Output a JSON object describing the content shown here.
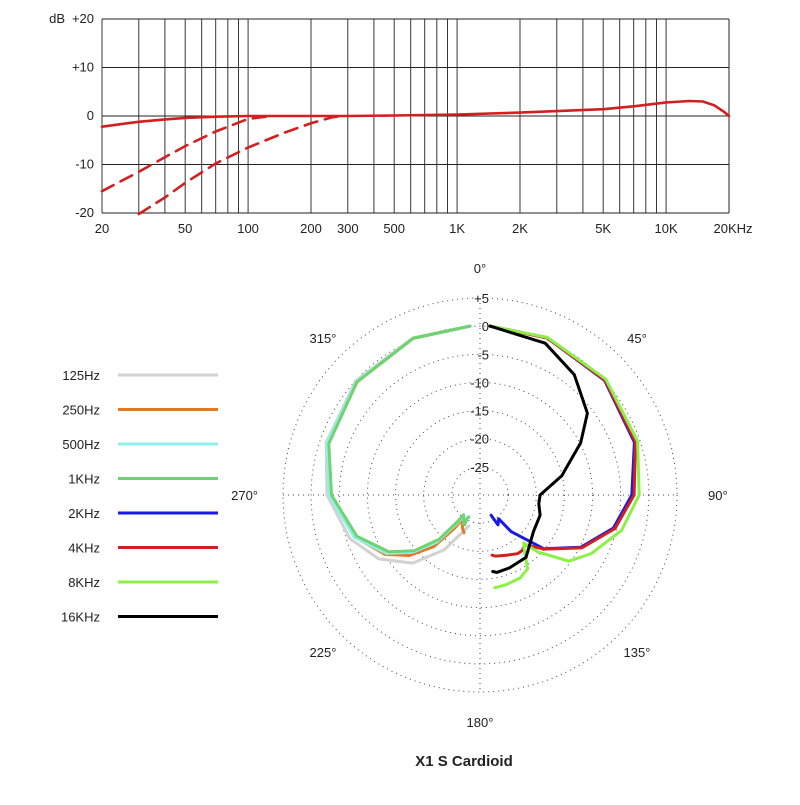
{
  "chart_data": [
    {
      "type": "line",
      "chart_name": "frequency-response",
      "ylabel_unit": "dB",
      "x_scale": "log",
      "xlim": [
        20,
        20000
      ],
      "ylim": [
        -20,
        20
      ],
      "x_ticks": [
        20,
        50,
        100,
        200,
        300,
        500,
        1000,
        2000,
        5000,
        10000,
        20000
      ],
      "x_tick_labels": [
        "20",
        "50",
        "100",
        "200",
        "300",
        "500",
        "1K",
        "2K",
        "5K",
        "10K",
        "20KHz"
      ],
      "y_ticks": [
        20,
        10,
        0,
        -10,
        -20
      ],
      "y_tick_labels": [
        "+20",
        "+10",
        "0",
        "-10",
        "-20"
      ],
      "grid": true,
      "series": [
        {
          "line_style": "solid",
          "color": "#d21f1f",
          "x": [
            20,
            30,
            40,
            50,
            70,
            100,
            150,
            200,
            300,
            500,
            1000,
            2000,
            3000,
            5000,
            7000,
            10000,
            13000,
            15000,
            17000,
            19000,
            20000
          ],
          "y": [
            -2.2,
            -1.2,
            -0.7,
            -0.4,
            -0.15,
            0,
            0,
            0,
            0,
            0.1,
            0.3,
            0.7,
            1.0,
            1.4,
            2.0,
            2.8,
            3.1,
            3.0,
            2.2,
            0.8,
            0
          ]
        },
        {
          "line_style": "dashed",
          "color": "#d21f1f",
          "x": [
            20,
            30,
            40,
            50,
            70,
            100,
            130
          ],
          "y": [
            -15.5,
            -11.5,
            -8.5,
            -6.2,
            -3.2,
            -0.6,
            0
          ]
        },
        {
          "line_style": "dashed",
          "color": "#d21f1f",
          "x": [
            30,
            40,
            50,
            70,
            100,
            150,
            200,
            250,
            280
          ],
          "y": [
            -20.5,
            -16.8,
            -13.8,
            -9.8,
            -6.5,
            -3.4,
            -1.5,
            -0.3,
            0
          ]
        }
      ]
    },
    {
      "type": "polar",
      "chart_name": "polar-pattern",
      "r_ticks": [
        5,
        0,
        -5,
        -10,
        -15,
        -20,
        -25
      ],
      "r_tick_labels": [
        "+5",
        "0",
        "-5",
        "-10",
        "-15",
        "-20",
        "-25"
      ],
      "rlim": [
        -30,
        5
      ],
      "angle_labels": [
        {
          "angle": 0,
          "label": "0°"
        },
        {
          "angle": 45,
          "label": "45°"
        },
        {
          "angle": 90,
          "label": "90°"
        },
        {
          "angle": 135,
          "label": "135°"
        },
        {
          "angle": 180,
          "label": "180°"
        },
        {
          "angle": 225,
          "label": "225°"
        },
        {
          "angle": 270,
          "label": "270°"
        },
        {
          "angle": 315,
          "label": "315°"
        }
      ],
      "series": [
        {
          "name": "125Hz",
          "side": "left",
          "color": "#d2d2d2",
          "points": [
            [
              0,
              0
            ],
            [
              20,
              -0.3
            ],
            [
              45,
              -1.3
            ],
            [
              70,
              -2.8
            ],
            [
              90,
              -4.6
            ],
            [
              110,
              -7.3
            ],
            [
              125,
              -10.2
            ],
            [
              140,
              -14.2
            ],
            [
              155,
              -19.3
            ],
            [
              170,
              -23.5
            ],
            [
              178,
              -24.5
            ]
          ]
        },
        {
          "name": "250Hz",
          "side": "left",
          "color": "#e07b24",
          "points": [
            [
              0,
              0
            ],
            [
              20,
              -0.4
            ],
            [
              45,
              -1.6
            ],
            [
              70,
              -3.2
            ],
            [
              90,
              -5.3
            ],
            [
              110,
              -8.2
            ],
            [
              125,
              -11.6
            ],
            [
              135,
              -14.8
            ],
            [
              145,
              -18.8
            ],
            [
              155,
              -23.5
            ],
            [
              163,
              -25.5
            ],
            [
              167,
              -24.0
            ],
            [
              171,
              -23.2
            ]
          ]
        },
        {
          "name": "500Hz",
          "side": "left",
          "color": "#8ff0ea",
          "points": [
            [
              0,
              0
            ],
            [
              20,
              -0.4
            ],
            [
              45,
              -1.5
            ],
            [
              70,
              -3.0
            ],
            [
              90,
              -5.0
            ],
            [
              110,
              -8.1
            ],
            [
              125,
              -11.9
            ],
            [
              135,
              -15.6
            ],
            [
              145,
              -19.8
            ],
            [
              155,
              -24.4
            ],
            [
              163,
              -26.0
            ],
            [
              168,
              -24.8
            ],
            [
              172,
              -25.8
            ],
            [
              177,
              -26.2
            ]
          ]
        },
        {
          "name": "1KHz",
          "side": "left",
          "color": "#6fd36f",
          "points": [
            [
              0,
              0
            ],
            [
              20,
              -0.4
            ],
            [
              45,
              -1.6
            ],
            [
              70,
              -3.3
            ],
            [
              90,
              -5.4
            ],
            [
              110,
              -8.6
            ],
            [
              125,
              -12.4
            ],
            [
              135,
              -16.0
            ],
            [
              145,
              -20.4
            ],
            [
              155,
              -24.8
            ],
            [
              162,
              -26.3
            ],
            [
              167,
              -25.2
            ],
            [
              170,
              -24.6
            ],
            [
              173,
              -25.8
            ],
            [
              177,
              -26.0
            ]
          ]
        },
        {
          "name": "2KHz",
          "side": "right",
          "color": "#1a1ae6",
          "points": [
            [
              0,
              0
            ],
            [
              20,
              -0.3
            ],
            [
              45,
              -1.2
            ],
            [
              70,
              -2.7
            ],
            [
              90,
              -4.8
            ],
            [
              105,
              -7.3
            ],
            [
              120,
              -11.4
            ],
            [
              135,
              -16.5
            ],
            [
              150,
              -22.5
            ],
            [
              160,
              -25.5
            ],
            [
              165,
              -24.5
            ],
            [
              172,
              -25.8
            ],
            [
              177,
              -26.4
            ]
          ]
        },
        {
          "name": "4KHz",
          "side": "right",
          "color": "#d21f1f",
          "points": [
            [
              0,
              0
            ],
            [
              20,
              -0.3
            ],
            [
              45,
              -1.1
            ],
            [
              70,
              -2.5
            ],
            [
              90,
              -4.4
            ],
            [
              105,
              -7.0
            ],
            [
              120,
              -11.2
            ],
            [
              135,
              -16.4
            ],
            [
              145,
              -19.2
            ],
            [
              150,
              -18.6
            ],
            [
              155,
              -18.5
            ],
            [
              165,
              -18.9
            ],
            [
              175,
              -19.1
            ],
            [
              178,
              -19.3
            ]
          ]
        },
        {
          "name": "8KHz",
          "side": "right",
          "color": "#8cf046",
          "points": [
            [
              0,
              0
            ],
            [
              20,
              -0.2
            ],
            [
              45,
              -0.9
            ],
            [
              70,
              -2.1
            ],
            [
              90,
              -3.5
            ],
            [
              105,
              -5.8
            ],
            [
              120,
              -9.2
            ],
            [
              130,
              -11.7
            ],
            [
              140,
              -16.8
            ],
            [
              145,
              -19.6
            ],
            [
              148,
              -18.5
            ],
            [
              153,
              -15.3
            ],
            [
              160,
              -14.3
            ],
            [
              170,
              -13.8
            ],
            [
              177,
              -13.5
            ]
          ]
        },
        {
          "name": "16KHz",
          "side": "right",
          "color": "#000000",
          "points": [
            [
              0,
              0
            ],
            [
              20,
              -1.3
            ],
            [
              35,
              -3.9
            ],
            [
              50,
              -7.4
            ],
            [
              60,
              -11.4
            ],
            [
              75,
              -16.8
            ],
            [
              90,
              -21.1
            ],
            [
              100,
              -21.2
            ],
            [
              112,
              -20.4
            ],
            [
              130,
              -19.9
            ],
            [
              150,
              -17.2
            ],
            [
              165,
              -16.6
            ],
            [
              175,
              -16.2
            ],
            [
              178,
              -16.4
            ]
          ]
        }
      ],
      "title": "X1 S  Cardioid"
    }
  ]
}
